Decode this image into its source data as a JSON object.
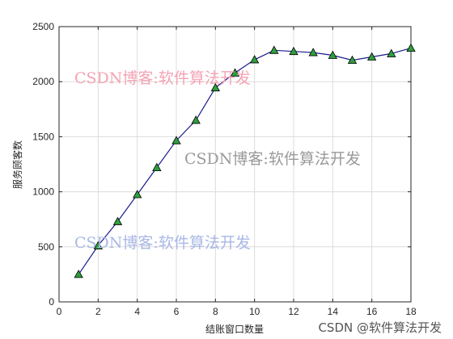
{
  "chart_data": {
    "type": "line",
    "title": "",
    "xlabel": "结账窗口数量",
    "ylabel": "服务顾客数",
    "xlim": [
      0,
      18
    ],
    "ylim": [
      0,
      2500
    ],
    "xticks": [
      0,
      2,
      4,
      6,
      8,
      10,
      12,
      14,
      16,
      18
    ],
    "yticks": [
      0,
      500,
      1000,
      1500,
      2000,
      2500
    ],
    "grid": true,
    "series": [
      {
        "marker": "triangle",
        "line_color": "#1a1a8c",
        "marker_fill": "#2e9e3e",
        "x": [
          1,
          2,
          3,
          4,
          5,
          6,
          7,
          8,
          9,
          10,
          11,
          12,
          13,
          14,
          15,
          16,
          17,
          18
        ],
        "y": [
          250,
          510,
          730,
          975,
          1220,
          1465,
          1650,
          1945,
          2080,
          2200,
          2285,
          2275,
          2265,
          2240,
          2195,
          2225,
          2255,
          2305
        ]
      }
    ]
  },
  "watermarks": {
    "pink": "CSDN博客:软件算法开发",
    "gray": "CSDN博客:软件算法开发",
    "blue": "CSDN博客:软件算法开发",
    "footer": "CSDN @软件算法开发",
    "colors": {
      "pink": "#f4a3b4",
      "gray": "#9a9a9a",
      "blue": "#a9b8e6"
    }
  }
}
